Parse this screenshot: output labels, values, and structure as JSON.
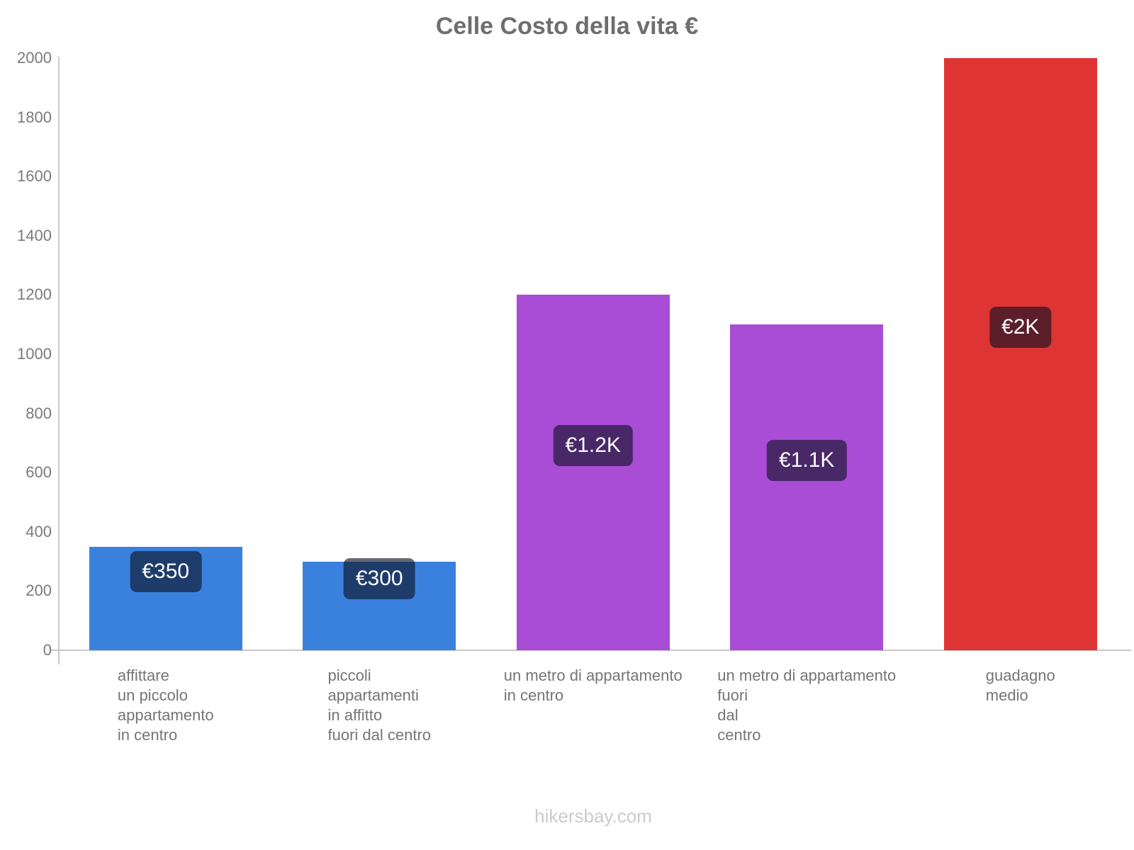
{
  "page": {
    "title": "Celle Costo della vita €",
    "footer": "hikersbay.com"
  },
  "chart_data": {
    "type": "bar",
    "title": "Celle Costo della vita €",
    "xlabel": "",
    "ylabel": "",
    "ylim": [
      0,
      2000
    ],
    "y_ticks": [
      0,
      200,
      400,
      600,
      800,
      1000,
      1200,
      1400,
      1600,
      1800,
      2000
    ],
    "grid": false,
    "legend": "none",
    "categories": [
      "affittare un piccolo appartamento in centro",
      "piccoli appartamenti in affitto fuori dal centro",
      "un metro di appartamento in centro",
      "un metro di appartamento fuori dal centro",
      "guadagno medio"
    ],
    "category_lines": [
      [
        "affittare",
        "un piccolo",
        "appartamento",
        "in centro"
      ],
      [
        "piccoli",
        "appartamenti",
        "in affitto",
        "fuori dal centro"
      ],
      [
        "un metro di appartamento",
        "in centro"
      ],
      [
        "un metro di appartamento",
        "fuori",
        "dal",
        "centro"
      ],
      [
        "guadagno",
        "medio"
      ]
    ],
    "values": [
      350,
      300,
      1200,
      1100,
      2000
    ],
    "value_labels": [
      "€350",
      "€300",
      "€1.2K",
      "€1.1K",
      "€2K"
    ],
    "bar_colors": [
      "#3A81DE",
      "#3A81DE",
      "#A94CD6",
      "#A94CD6",
      "#DE3434"
    ],
    "bar_keys": [
      "bar-affitto-centro",
      "bar-affitto-fuori-centro",
      "bar-m2-centro",
      "bar-m2-fuori-centro",
      "bar-guadagno-medio"
    ],
    "value_badge_bg": "rgba(13,18,35,0.62)",
    "currency_symbol": "€",
    "colors": {
      "axis": "#C8C8C8",
      "tick_text": "#7A7A7A",
      "category_text": "#757575",
      "title_text": "#6E6E6E",
      "footer_text": "#CBCBCB"
    },
    "footer": "hikersbay.com"
  }
}
